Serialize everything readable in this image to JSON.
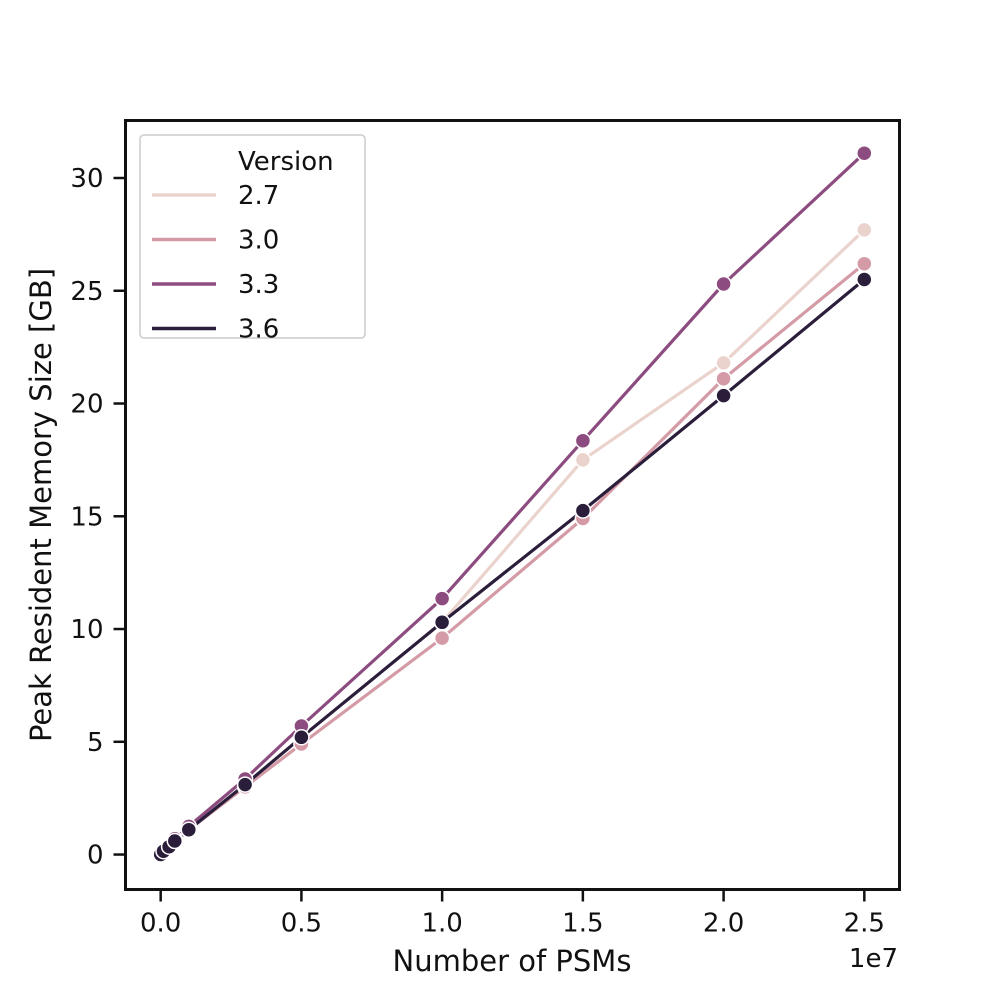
{
  "chart_data": {
    "type": "line",
    "xlabel": "Number of PSMs",
    "ylabel": "Peak Resident Memory Size [GB]",
    "x_offset_label": "1e7",
    "x_scale": 10000000,
    "xlim": [
      -0.125,
      2.625
    ],
    "ylim": [
      -1.55,
      32.55
    ],
    "x_ticks": [
      0.0,
      0.5,
      1.0,
      1.5,
      2.0,
      2.5
    ],
    "x_tick_labels": [
      "0.0",
      "0.5",
      "1.0",
      "1.5",
      "2.0",
      "2.5"
    ],
    "y_ticks": [
      0,
      5,
      10,
      15,
      20,
      25,
      30
    ],
    "y_tick_labels": [
      "0",
      "5",
      "10",
      "15",
      "20",
      "25",
      "30"
    ],
    "grid": false,
    "legend": {
      "title": "Version",
      "placement": "top-left"
    },
    "series": [
      {
        "name": "2.7",
        "color": "#ebd3cd",
        "x": [
          0.0,
          0.01,
          0.03,
          0.05,
          0.1,
          0.3,
          0.5,
          1.0,
          1.5,
          2.0,
          2.5
        ],
        "y": [
          0.0,
          0.15,
          0.35,
          0.6,
          1.1,
          3.1,
          5.2,
          10.3,
          17.5,
          21.8,
          27.7
        ]
      },
      {
        "name": "3.0",
        "color": "#d49ba7",
        "x": [
          0.0,
          0.01,
          0.03,
          0.05,
          0.1,
          0.3,
          0.5,
          1.0,
          1.5,
          2.0,
          2.5
        ],
        "y": [
          0.0,
          0.1,
          0.3,
          0.55,
          1.1,
          3.0,
          4.9,
          9.6,
          14.9,
          21.1,
          26.2
        ]
      },
      {
        "name": "3.3",
        "color": "#8d4c7f",
        "x": [
          0.0,
          0.01,
          0.03,
          0.05,
          0.1,
          0.3,
          0.5,
          1.0,
          1.5,
          2.0,
          2.5
        ],
        "y": [
          0.05,
          0.2,
          0.4,
          0.7,
          1.25,
          3.35,
          5.7,
          11.35,
          18.35,
          25.3,
          31.1
        ]
      },
      {
        "name": "3.6",
        "color": "#2a1e3b",
        "x": [
          0.0,
          0.01,
          0.03,
          0.05,
          0.1,
          0.3,
          0.5,
          1.0,
          1.5,
          2.0,
          2.5
        ],
        "y": [
          0.0,
          0.15,
          0.35,
          0.6,
          1.1,
          3.1,
          5.2,
          10.3,
          15.25,
          20.35,
          25.5
        ]
      }
    ]
  }
}
